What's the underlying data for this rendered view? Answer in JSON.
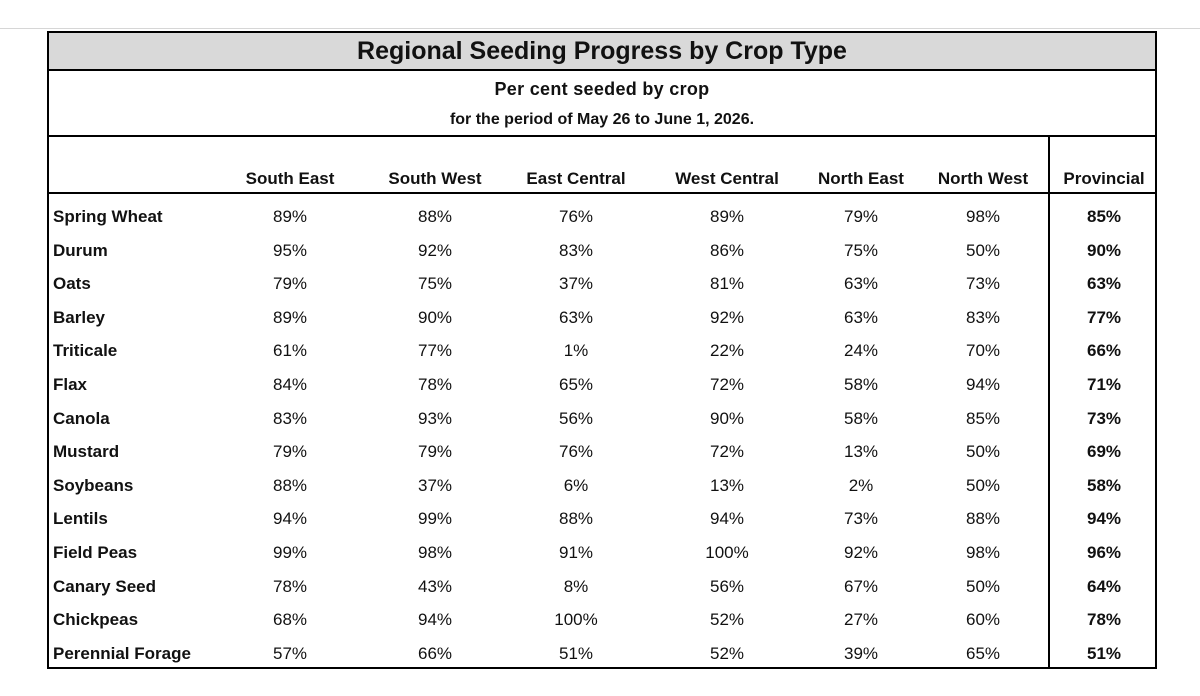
{
  "report": {
    "title": "Regional Seeding Progress by Crop Type",
    "subtitle": "Per cent  seeded by crop",
    "period": "for the period of May 26 to June 1, 2026."
  },
  "columns": [
    "South East",
    "South West",
    "East Central",
    "West Central",
    "North East",
    "North West",
    "Provincial"
  ],
  "rows": [
    {
      "crop": "Spring Wheat",
      "values": [
        "89%",
        "88%",
        "76%",
        "89%",
        "79%",
        "98%",
        "85%"
      ]
    },
    {
      "crop": "Durum",
      "values": [
        "95%",
        "92%",
        "83%",
        "86%",
        "75%",
        "50%",
        "90%"
      ]
    },
    {
      "crop": "Oats",
      "values": [
        "79%",
        "75%",
        "37%",
        "81%",
        "63%",
        "73%",
        "63%"
      ]
    },
    {
      "crop": "Barley",
      "values": [
        "89%",
        "90%",
        "63%",
        "92%",
        "63%",
        "83%",
        "77%"
      ]
    },
    {
      "crop": "Triticale",
      "values": [
        "61%",
        "77%",
        "1%",
        "22%",
        "24%",
        "70%",
        "66%"
      ]
    },
    {
      "crop": "Flax",
      "values": [
        "84%",
        "78%",
        "65%",
        "72%",
        "58%",
        "94%",
        "71%"
      ]
    },
    {
      "crop": "Canola",
      "values": [
        "83%",
        "93%",
        "56%",
        "90%",
        "58%",
        "85%",
        "73%"
      ]
    },
    {
      "crop": "Mustard",
      "values": [
        "79%",
        "79%",
        "76%",
        "72%",
        "13%",
        "50%",
        "69%"
      ]
    },
    {
      "crop": "Soybeans",
      "values": [
        "88%",
        "37%",
        "6%",
        "13%",
        "2%",
        "50%",
        "58%"
      ]
    },
    {
      "crop": "Lentils",
      "values": [
        "94%",
        "99%",
        "88%",
        "94%",
        "73%",
        "88%",
        "94%"
      ]
    },
    {
      "crop": "Field Peas",
      "values": [
        "99%",
        "98%",
        "91%",
        "100%",
        "92%",
        "98%",
        "96%"
      ]
    },
    {
      "crop": "Canary Seed",
      "values": [
        "78%",
        "43%",
        "8%",
        "56%",
        "67%",
        "50%",
        "64%"
      ]
    },
    {
      "crop": "Chickpeas",
      "values": [
        "68%",
        "94%",
        "100%",
        "52%",
        "27%",
        "60%",
        "78%"
      ]
    },
    {
      "crop": "Perennial Forage",
      "values": [
        "57%",
        "66%",
        "51%",
        "52%",
        "39%",
        "65%",
        "51%"
      ]
    }
  ]
}
